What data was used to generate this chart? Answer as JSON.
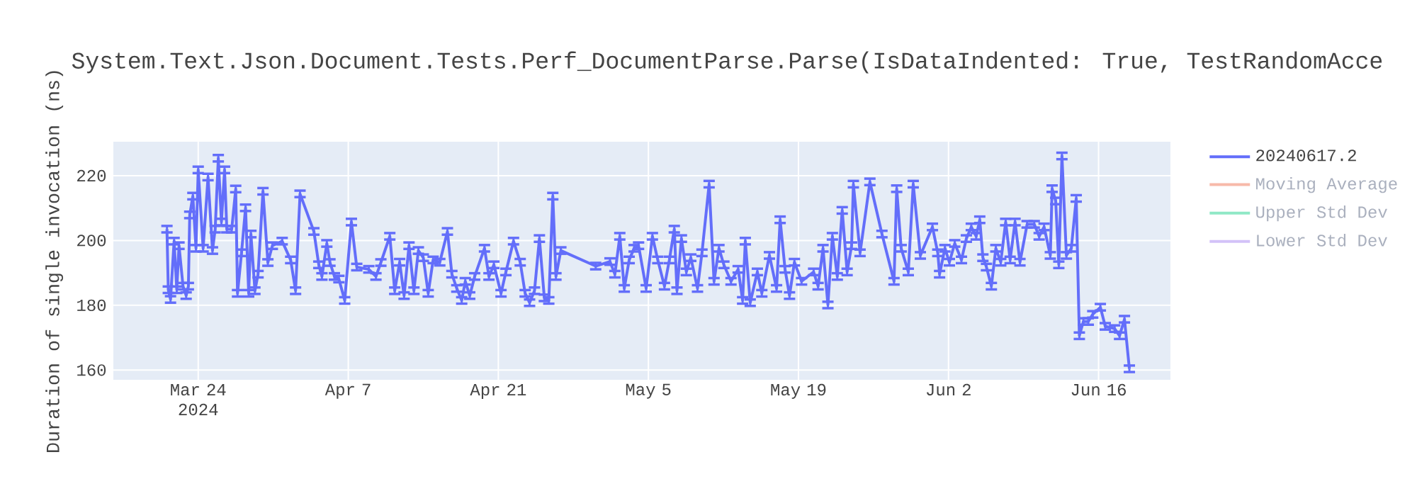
{
  "chart_data": {
    "type": "line",
    "title": "System.Text.Json.Document.Tests.Perf_DocumentParse.Parse(IsDataIndented: True, TestRandomAcce",
    "ylabel": "Duration of single invocation (ns)",
    "xlim": [
      "2024-03-16T02:00",
      "2024-06-22T17:00"
    ],
    "ylim": [
      157,
      230.5
    ],
    "xticks": [
      {
        "value": "2024-03-24",
        "label": "Mar 24 2024"
      },
      {
        "value": "2024-04-07",
        "label": "Apr 7"
      },
      {
        "value": "2024-04-21",
        "label": "Apr 21"
      },
      {
        "value": "2024-05-05",
        "label": "May 5"
      },
      {
        "value": "2024-05-19",
        "label": "May 19"
      },
      {
        "value": "2024-06-02",
        "label": "Jun 2"
      },
      {
        "value": "2024-06-16",
        "label": "Jun 16"
      }
    ],
    "yticks": [
      160,
      180,
      200,
      220
    ],
    "grid": true,
    "legend": "right",
    "marker": "none",
    "line_style": "solid",
    "series": [
      {
        "name": "20240617.2",
        "color": "#636efa",
        "x": [
          "2024-03-21T02:00",
          "2024-03-21T05:00",
          "2024-03-21T10:00",
          "2024-03-21T18:00",
          "2024-03-22T00:00",
          "2024-03-22T05:00",
          "2024-03-22T14:00",
          "2024-03-22T21:00",
          "2024-03-23T02:00",
          "2024-03-23T05:00",
          "2024-03-23T12:00",
          "2024-03-23T19:00",
          "2024-03-24T00:00",
          "2024-03-24T11:00",
          "2024-03-24T22:00",
          "2024-03-25T08:00",
          "2024-03-25T14:00",
          "2024-03-25T21:00",
          "2024-03-26T04:00",
          "2024-03-26T11:00",
          "2024-03-26T16:00",
          "2024-03-27T03:00",
          "2024-03-27T12:00",
          "2024-03-27T16:00",
          "2024-03-28T01:00",
          "2024-03-28T10:00",
          "2024-03-28T17:00",
          "2024-03-28T22:00",
          "2024-03-29T07:00",
          "2024-03-29T14:00",
          "2024-03-30T01:00",
          "2024-03-30T12:00",
          "2024-03-30T22:00",
          "2024-03-31T20:00",
          "2024-04-01T15:00",
          "2024-04-02T02:00",
          "2024-04-02T12:00",
          "2024-04-03T19:00",
          "2024-04-04T06:00",
          "2024-04-04T13:00",
          "2024-04-05T00:00",
          "2024-04-05T07:00",
          "2024-04-05T17:00",
          "2024-04-06T03:00",
          "2024-04-06T16:00",
          "2024-04-07T07:00",
          "2024-04-07T19:00",
          "2024-04-08T22:00",
          "2024-04-09T14:00",
          "2024-04-10T01:00",
          "2024-04-10T21:00",
          "2024-04-11T08:00",
          "2024-04-11T19:00",
          "2024-04-12T05:00",
          "2024-04-12T16:00",
          "2024-04-13T03:00",
          "2024-04-13T13:00",
          "2024-04-14T00:00",
          "2024-04-14T11:00",
          "2024-04-14T22:00",
          "2024-04-15T13:00",
          "2024-04-16T06:00",
          "2024-04-16T16:00",
          "2024-04-17T03:00",
          "2024-04-17T14:00",
          "2024-04-17T22:00",
          "2024-04-18T08:00",
          "2024-04-18T19:00",
          "2024-04-19T17:00",
          "2024-04-20T03:00",
          "2024-04-20T14:00",
          "2024-04-21T06:00",
          "2024-04-21T17:00",
          "2024-04-22T10:00",
          "2024-04-23T01:00",
          "2024-04-23T12:00",
          "2024-04-23T22:00",
          "2024-04-24T09:00",
          "2024-04-24T20:00",
          "2024-04-25T07:00",
          "2024-04-25T17:00",
          "2024-04-26T02:00",
          "2024-04-26T09:00",
          "2024-04-26T20:00",
          "2024-04-30T02:00",
          "2024-05-01T10:00",
          "2024-05-01T21:00",
          "2024-05-02T08:00",
          "2024-05-02T18:00",
          "2024-05-03T05:00",
          "2024-05-03T16:00",
          "2024-05-04T02:00",
          "2024-05-04T19:00",
          "2024-05-05T09:00",
          "2024-05-05T21:00",
          "2024-05-06T12:00",
          "2024-05-06T23:00",
          "2024-05-07T10:00",
          "2024-05-07T16:00",
          "2024-05-08T02:00",
          "2024-05-08T13:00",
          "2024-05-08T23:00",
          "2024-05-09T14:00",
          "2024-05-10T00:00",
          "2024-05-10T16:00",
          "2024-05-11T03:00",
          "2024-05-11T14:00",
          "2024-05-12T01:00",
          "2024-05-12T17:00",
          "2024-05-13T09:00",
          "2024-05-13T19:00",
          "2024-05-14T01:00",
          "2024-05-14T12:00",
          "2024-05-15T04:00",
          "2024-05-15T14:00",
          "2024-05-16T07:00",
          "2024-05-16T23:00",
          "2024-05-17T07:00",
          "2024-05-17T18:00",
          "2024-05-18T04:00",
          "2024-05-18T15:00",
          "2024-05-19T07:00",
          "2024-05-20T10:00",
          "2024-05-20T20:00",
          "2024-05-21T07:00",
          "2024-05-21T18:00",
          "2024-05-22T04:00",
          "2024-05-22T15:00",
          "2024-05-23T02:00",
          "2024-05-23T13:00",
          "2024-05-23T23:00",
          "2024-05-24T03:00",
          "2024-05-24T18:00",
          "2024-05-25T16:00",
          "2024-05-26T19:00",
          "2024-05-27T22:00",
          "2024-05-28T04:00",
          "2024-05-28T14:00",
          "2024-05-29T06:00",
          "2024-05-29T17:00",
          "2024-05-30T09:00",
          "2024-05-31T12:00",
          "2024-06-01T00:00",
          "2024-06-01T04:00",
          "2024-06-01T16:00",
          "2024-06-02T02:00",
          "2024-06-02T14:00",
          "2024-06-03T05:00",
          "2024-06-03T16:00",
          "2024-06-04T03:00",
          "2024-06-04T14:00",
          "2024-06-04T22:00",
          "2024-06-05T05:00",
          "2024-06-05T13:00",
          "2024-06-06T00:00",
          "2024-06-06T10:00",
          "2024-06-06T21:00",
          "2024-06-07T08:00",
          "2024-06-07T18:00",
          "2024-06-08T05:00",
          "2024-06-08T16:00",
          "2024-06-09T08:00",
          "2024-06-10T00:00",
          "2024-06-10T11:00",
          "2024-06-10T22:00",
          "2024-06-11T12:00",
          "2024-06-11T16:00",
          "2024-06-12T00:00",
          "2024-06-12T07:00",
          "2024-06-12T14:00",
          "2024-06-13T00:00",
          "2024-06-13T11:00",
          "2024-06-13T22:00",
          "2024-06-14T05:00",
          "2024-06-14T14:00",
          "2024-06-15T01:00",
          "2024-06-15T11:00",
          "2024-06-16T04:00",
          "2024-06-16T15:00",
          "2024-06-17T12:00",
          "2024-06-17T23:00",
          "2024-06-18T10:00",
          "2024-06-18T21:00"
        ],
        "values": [
          203.5,
          184.8,
          181.8,
          199.8,
          184.8,
          198.4,
          185.9,
          183.0,
          185.9,
          207.9,
          213.7,
          197.6,
          221.8,
          197.6,
          219.6,
          196.9,
          203.5,
          225.4,
          205.7,
          221.8,
          203.5,
          203.5,
          215.9,
          183.7,
          196.2,
          210.1,
          183.7,
          202,
          184.5,
          189.6,
          215.2,
          193.2,
          198.4,
          199.8,
          194,
          184.5,
          214.4,
          202.8,
          192.5,
          188.9,
          199.1,
          193.2,
          188.9,
          188.1,
          181.5,
          205.7,
          191.8,
          191.1,
          188.9,
          193.2,
          201.3,
          184.5,
          193.3,
          183,
          198.4,
          184.5,
          196.9,
          194.7,
          183.7,
          194,
          193.3,
          202.8,
          189.6,
          185.2,
          181.5,
          187.4,
          183,
          188.9,
          197.6,
          188.9,
          192.5,
          183.7,
          190.3,
          199.8,
          193.3,
          183.7,
          180.8,
          184.5,
          200.6,
          182.3,
          181.5,
          213.7,
          188.9,
          196.9,
          192.1,
          193.5,
          189.6,
          201.3,
          185.2,
          194,
          197.6,
          198.4,
          185.2,
          201.3,
          194,
          185.9,
          194,
          203.5,
          184.5,
          200.6,
          190.3,
          194.7,
          185.2,
          196.2,
          217.4,
          187.4,
          197.6,
          192.5,
          187.4,
          191.1,
          181.5,
          199.8,
          180.8,
          190.3,
          183.7,
          195.4,
          185.2,
          206.4,
          191.1,
          183,
          193.3,
          187.4,
          190.3,
          185.9,
          197.6,
          180.1,
          201.3,
          188.9,
          209.3,
          190.3,
          198.4,
          217.4,
          196.2,
          218.1,
          202,
          187.4,
          216,
          197.6,
          190.3,
          217.4,
          195.4,
          204.2,
          196.2,
          189.6,
          197.6,
          193.3,
          199.1,
          194,
          200.6,
          204.2,
          201.3,
          206.4,
          194.7,
          191.8,
          185.9,
          197.6,
          193.3,
          205.7,
          194,
          205.7,
          193.3,
          205,
          205,
          201.3,
          204.2,
          195.4,
          216,
          212.2,
          192.5,
          226.1,
          195.4,
          197.6,
          213,
          170.6,
          175,
          175,
          177.2,
          179.4,
          173.5,
          172.8,
          170.6,
          175.7,
          160.4
        ],
        "errors": [
          1,
          1,
          1,
          1,
          1,
          1,
          1,
          1,
          1,
          1,
          1,
          1,
          1,
          1,
          1,
          1,
          1,
          1,
          1,
          1,
          1,
          1,
          1,
          1,
          1,
          1,
          1,
          1,
          1,
          1,
          1,
          1,
          1,
          1,
          1,
          1,
          1,
          1,
          1,
          1,
          1,
          1,
          1,
          1,
          1,
          1,
          1,
          1,
          1,
          1,
          1,
          1,
          1,
          1,
          1,
          1,
          1,
          1,
          1,
          1,
          1,
          1,
          1,
          1,
          1,
          1,
          1,
          1,
          1,
          1,
          1,
          1,
          1,
          1,
          1,
          1,
          1,
          1,
          1,
          1,
          1,
          1,
          1,
          1,
          1,
          1,
          1,
          1,
          1,
          1,
          1,
          1,
          1,
          1,
          1,
          1,
          1,
          1,
          1,
          1,
          1,
          1,
          1,
          1,
          1,
          1,
          1,
          1,
          1,
          1,
          1,
          1,
          1,
          1,
          1,
          1,
          1,
          1,
          1,
          1,
          1,
          1,
          1,
          1,
          1,
          1,
          1,
          1,
          1,
          1,
          1,
          1,
          1,
          1,
          1,
          1,
          1,
          1,
          1,
          1,
          1,
          1,
          1,
          1,
          1,
          1,
          1,
          1,
          1,
          1,
          1,
          1,
          1,
          1,
          1,
          1,
          1,
          1,
          1,
          1,
          1,
          1,
          1,
          1,
          1,
          1,
          1,
          1,
          1,
          1,
          1,
          1,
          1,
          1,
          1,
          1,
          1,
          1,
          1,
          1,
          1,
          1,
          1
        ]
      },
      {
        "name": "Moving Average",
        "color": "#f7b9a9"
      },
      {
        "name": "Upper Std Dev",
        "color": "#8fe8c6"
      },
      {
        "name": "Lower Std Dev",
        "color": "#d3c2f8"
      }
    ]
  }
}
